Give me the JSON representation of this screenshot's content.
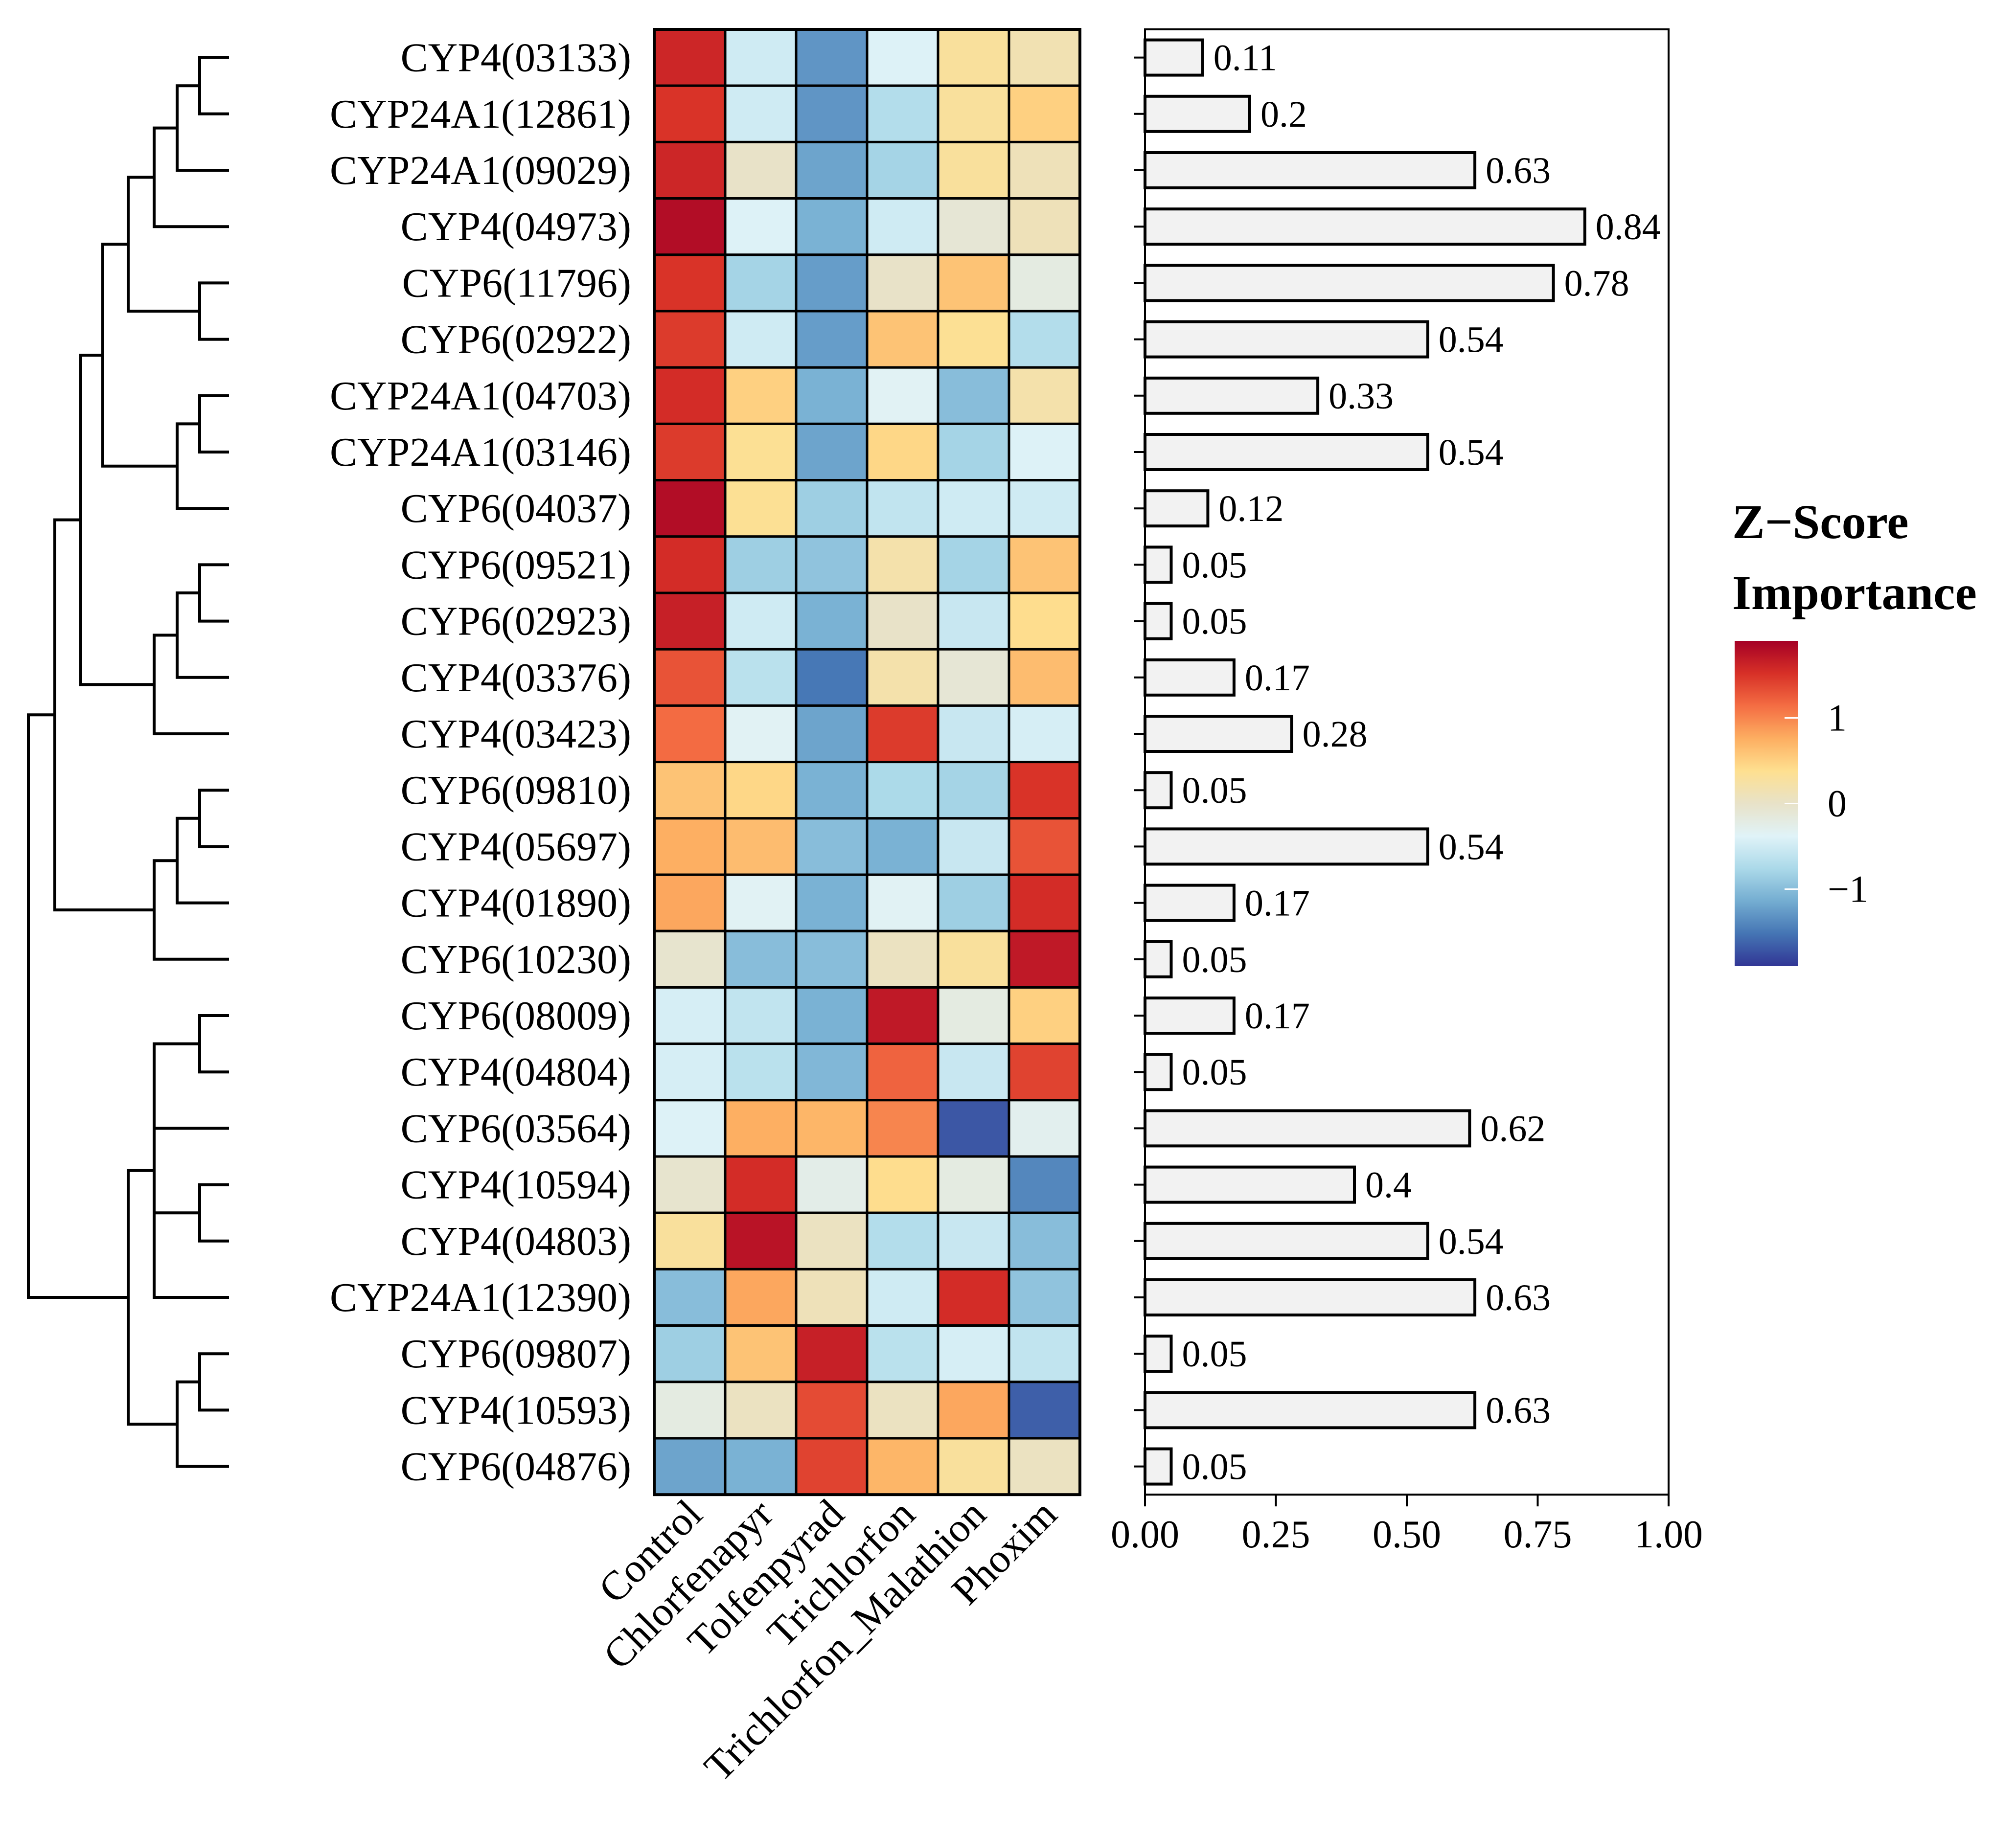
{
  "chart_data": [
    {
      "type": "heatmap",
      "columns": [
        "Control",
        "Chlorfenapyr",
        "Tolfenpyrad",
        "Trichlorfon",
        "Trichlorfon_Malathion",
        "Phoxim"
      ],
      "rows": [
        "CYP4(03133)",
        "CYP24A1(12861)",
        "CYP24A1(09029)",
        "CYP4(04973)",
        "CYP6(11796)",
        "CYP6(02922)",
        "CYP24A1(04703)",
        "CYP24A1(03146)",
        "CYP6(04037)",
        "CYP6(09521)",
        "CYP6(02923)",
        "CYP4(03376)",
        "CYP4(03423)",
        "CYP6(09810)",
        "CYP4(05697)",
        "CYP4(01890)",
        "CYP6(10230)",
        "CYP6(08009)",
        "CYP4(04804)",
        "CYP6(03564)",
        "CYP4(10594)",
        "CYP4(04803)",
        "CYP24A1(12390)",
        "CYP6(09807)",
        "CYP4(10593)",
        "CYP6(04876)"
      ],
      "values": [
        [
          1.6,
          -0.5,
          -1.3,
          -0.4,
          0.3,
          0.15
        ],
        [
          1.5,
          -0.5,
          -1.3,
          -0.7,
          0.3,
          0.5
        ],
        [
          1.6,
          0.0,
          -1.2,
          -0.8,
          0.3,
          0.1
        ],
        [
          1.8,
          -0.4,
          -1.1,
          -0.5,
          -0.1,
          0.1
        ],
        [
          1.5,
          -0.8,
          -1.25,
          0.0,
          0.6,
          -0.2
        ],
        [
          1.45,
          -0.5,
          -1.25,
          0.6,
          0.35,
          -0.7
        ],
        [
          1.55,
          0.5,
          -1.1,
          -0.35,
          -1.0,
          0.2
        ],
        [
          1.45,
          0.35,
          -1.2,
          0.45,
          -0.8,
          -0.4
        ],
        [
          1.8,
          0.35,
          -0.85,
          -0.6,
          -0.5,
          -0.5
        ],
        [
          1.55,
          -0.85,
          -0.95,
          0.2,
          -0.8,
          0.6
        ],
        [
          1.65,
          -0.5,
          -1.1,
          0.0,
          -0.55,
          0.4
        ],
        [
          1.3,
          -0.65,
          -1.5,
          0.2,
          -0.1,
          0.65
        ],
        [
          1.15,
          -0.35,
          -1.2,
          1.45,
          -0.55,
          -0.45
        ],
        [
          0.6,
          0.45,
          -1.1,
          -0.75,
          -0.8,
          1.5
        ],
        [
          0.75,
          0.65,
          -1.0,
          -1.1,
          -0.55,
          1.3
        ],
        [
          0.8,
          -0.35,
          -1.1,
          -0.35,
          -0.85,
          1.55
        ],
        [
          -0.05,
          -1.0,
          -1.0,
          0.05,
          0.3,
          1.7
        ],
        [
          -0.45,
          -0.6,
          -1.1,
          1.7,
          -0.2,
          0.5
        ],
        [
          -0.45,
          -0.65,
          -1.05,
          1.2,
          -0.55,
          1.4
        ],
        [
          -0.4,
          0.75,
          0.7,
          1.0,
          -1.7,
          -0.3
        ],
        [
          -0.05,
          1.55,
          -0.25,
          0.4,
          -0.2,
          -1.4
        ],
        [
          0.3,
          1.75,
          0.05,
          -0.7,
          -0.55,
          -1.0
        ],
        [
          -1.0,
          0.8,
          0.1,
          -0.5,
          1.55,
          -0.95
        ],
        [
          -0.85,
          0.6,
          1.65,
          -0.65,
          -0.45,
          -0.6
        ],
        [
          -0.2,
          0.05,
          1.35,
          0.05,
          0.8,
          -1.65
        ],
        [
          -1.2,
          -1.1,
          1.4,
          0.7,
          0.3,
          0.05
        ]
      ],
      "colorbar_range": [
        -1.9,
        1.9
      ],
      "colorbar_ticks": [
        "1",
        "0",
        "−1"
      ],
      "legend_title": [
        "Z−Score",
        "Importance"
      ],
      "legend_position": "right"
    },
    {
      "type": "bar",
      "orientation": "horizontal",
      "categories": [
        "CYP4(03133)",
        "CYP24A1(12861)",
        "CYP24A1(09029)",
        "CYP4(04973)",
        "CYP6(11796)",
        "CYP6(02922)",
        "CYP24A1(04703)",
        "CYP24A1(03146)",
        "CYP6(04037)",
        "CYP6(09521)",
        "CYP6(02923)",
        "CYP4(03376)",
        "CYP4(03423)",
        "CYP6(09810)",
        "CYP4(05697)",
        "CYP4(01890)",
        "CYP6(10230)",
        "CYP6(08009)",
        "CYP4(04804)",
        "CYP6(03564)",
        "CYP4(10594)",
        "CYP4(04803)",
        "CYP24A1(12390)",
        "CYP6(09807)",
        "CYP4(10593)",
        "CYP6(04876)"
      ],
      "values": [
        0.11,
        0.2,
        0.63,
        0.84,
        0.78,
        0.54,
        0.33,
        0.54,
        0.12,
        0.05,
        0.05,
        0.17,
        0.28,
        0.05,
        0.54,
        0.17,
        0.05,
        0.17,
        0.05,
        0.62,
        0.4,
        0.54,
        0.63,
        0.05,
        0.63,
        0.05
      ],
      "value_labels": [
        "0.11",
        "0.2",
        "0.63",
        "0.84",
        "0.78",
        "0.54",
        "0.33",
        "0.54",
        "0.12",
        "0.05",
        "0.05",
        "0.17",
        "0.28",
        "0.05",
        "0.54",
        "0.17",
        "0.05",
        "0.17",
        "0.05",
        "0.62",
        "0.4",
        "0.54",
        "0.63",
        "0.05",
        "0.63",
        "0.05"
      ],
      "xlim": [
        0,
        1
      ],
      "xticks": [
        "0.00",
        "0.25",
        "0.50",
        "0.75",
        "1.00"
      ],
      "bar_color": "#f2f2f2",
      "edge_color": "#000000"
    }
  ],
  "dendrogram": {
    "leaf_order": [
      "CYP4(03133)",
      "CYP24A1(12861)",
      "CYP24A1(09029)",
      "CYP4(04973)",
      "CYP6(11796)",
      "CYP6(02922)",
      "CYP24A1(04703)",
      "CYP24A1(03146)",
      "CYP6(04037)",
      "CYP6(09521)",
      "CYP6(02923)",
      "CYP4(03376)",
      "CYP4(03423)",
      "CYP6(09810)",
      "CYP4(05697)",
      "CYP4(01890)",
      "CYP6(10230)",
      "CYP6(08009)",
      "CYP4(04804)",
      "CYP6(03564)",
      "CYP4(10594)",
      "CYP4(04803)",
      "CYP24A1(12390)",
      "CYP6(09807)",
      "CYP4(10593)",
      "CYP6(04876)"
    ]
  },
  "colors": {
    "palette": [
      "#313695",
      "#4575b4",
      "#74add1",
      "#abd9e9",
      "#e0f3f8",
      "#e8e2c8",
      "#fee090",
      "#fdae61",
      "#f46d43",
      "#d73027",
      "#a50026"
    ]
  }
}
